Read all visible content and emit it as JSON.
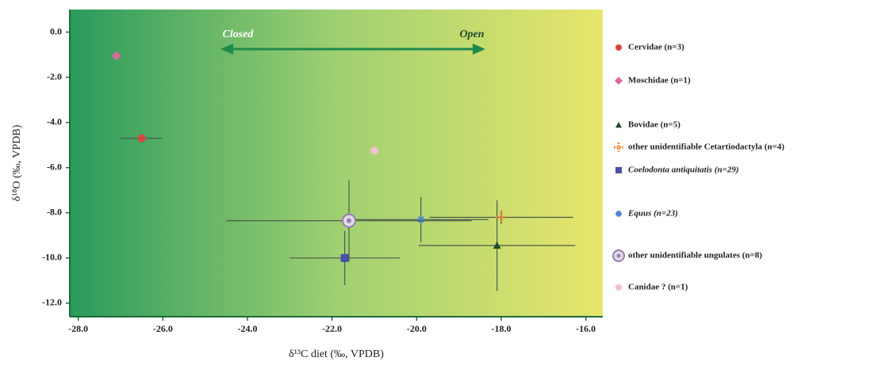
{
  "chart_data": {
    "type": "scatter",
    "x_label": "δ¹³C diet (‰, VPDB)",
    "y_label": "δ¹⁸O (‰, VPDB)",
    "annotations": {
      "closed": "Closed",
      "open": "Open"
    },
    "xlim": [
      -28.2,
      -15.6
    ],
    "ylim": [
      -12.6,
      1.0
    ],
    "xticks": [
      {
        "value": -28,
        "label": "-28.0"
      },
      {
        "value": -26,
        "label": "-26.0"
      },
      {
        "value": -24,
        "label": "-24.0"
      },
      {
        "value": -22,
        "label": "-22.0"
      },
      {
        "value": -20,
        "label": "-20.0"
      },
      {
        "value": -18,
        "label": "-18.0"
      },
      {
        "value": -16,
        "label": "-16.0"
      }
    ],
    "yticks": [
      {
        "value": 0,
        "label": "0.0"
      },
      {
        "value": -2,
        "label": "-2.0"
      },
      {
        "value": -4,
        "label": "-4.0"
      },
      {
        "value": -6,
        "label": "-6.0"
      },
      {
        "value": -8,
        "label": "-8.0"
      },
      {
        "value": -10,
        "label": "-10.0"
      },
      {
        "value": -12,
        "label": "-12.0"
      }
    ],
    "series": [
      {
        "name": "Cervidae (n=3)",
        "color": "#d9463e",
        "marker": "circle",
        "x": [
          -26.5
        ],
        "values": [
          -4.7
        ],
        "xerr": [
          0.5
        ],
        "yerr": [
          0.2
        ]
      },
      {
        "name": "Moschidae (n=1)",
        "color": "#d669a0",
        "marker": "diamond",
        "x": [
          -27.1
        ],
        "values": [
          -1.05
        ],
        "xerr": [
          null
        ],
        "yerr": [
          null
        ]
      },
      {
        "name": "Bovidae (n=5)",
        "color": "#1d4d2a",
        "marker": "triangle",
        "x": [
          -18.1
        ],
        "values": [
          -9.45
        ],
        "xerr": [
          1.85
        ],
        "yerr": [
          2.0
        ]
      },
      {
        "name": "other unidentifiable Cetartiodactyla (n=4)",
        "color": "#f08a3a",
        "marker": "cross",
        "x": [
          -18.0
        ],
        "values": [
          -8.2
        ],
        "xerr": [
          1.7
        ],
        "yerr": [
          0.3
        ]
      },
      {
        "name": "Coelodonta antiquitatis (n=29)",
        "color": "#4a4fa8",
        "marker": "square",
        "x": [
          -21.7
        ],
        "values": [
          -10.0
        ],
        "xerr": [
          1.3
        ],
        "yerr": [
          1.2
        ]
      },
      {
        "name": "Equus (n=23)",
        "color": "#4a86d0",
        "marker": "asterisk",
        "x": [
          -19.9
        ],
        "values": [
          -8.3
        ],
        "xerr": [
          1.6
        ],
        "yerr": [
          1.0
        ]
      },
      {
        "name": "other unidentifiable ungulates (n=8)",
        "color": "#9b7ab8",
        "marker": "ring",
        "x": [
          -21.6
        ],
        "values": [
          -8.35
        ],
        "xerr": [
          2.9
        ],
        "yerr": [
          1.8
        ]
      },
      {
        "name": "Canidae ? (n=1)",
        "color": "#f2bfd2",
        "marker": "circle",
        "x": [
          -21.0
        ],
        "values": [
          -5.25
        ],
        "xerr": [
          null
        ],
        "yerr": [
          null
        ]
      }
    ]
  }
}
